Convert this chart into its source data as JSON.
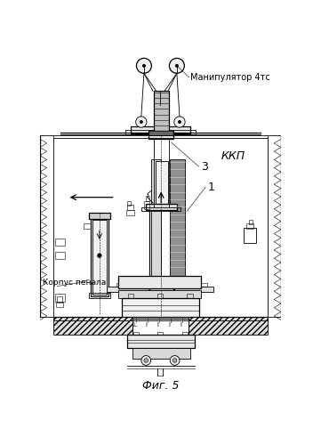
{
  "title": "Фиг. 5",
  "label_manipulator": "Манипулятор 4тс",
  "label_kkp": "ККП",
  "label_korpus": "Корпус пенала",
  "label_3": "3",
  "label_1": "1",
  "bg_color": "#ffffff",
  "line_color": "#000000"
}
